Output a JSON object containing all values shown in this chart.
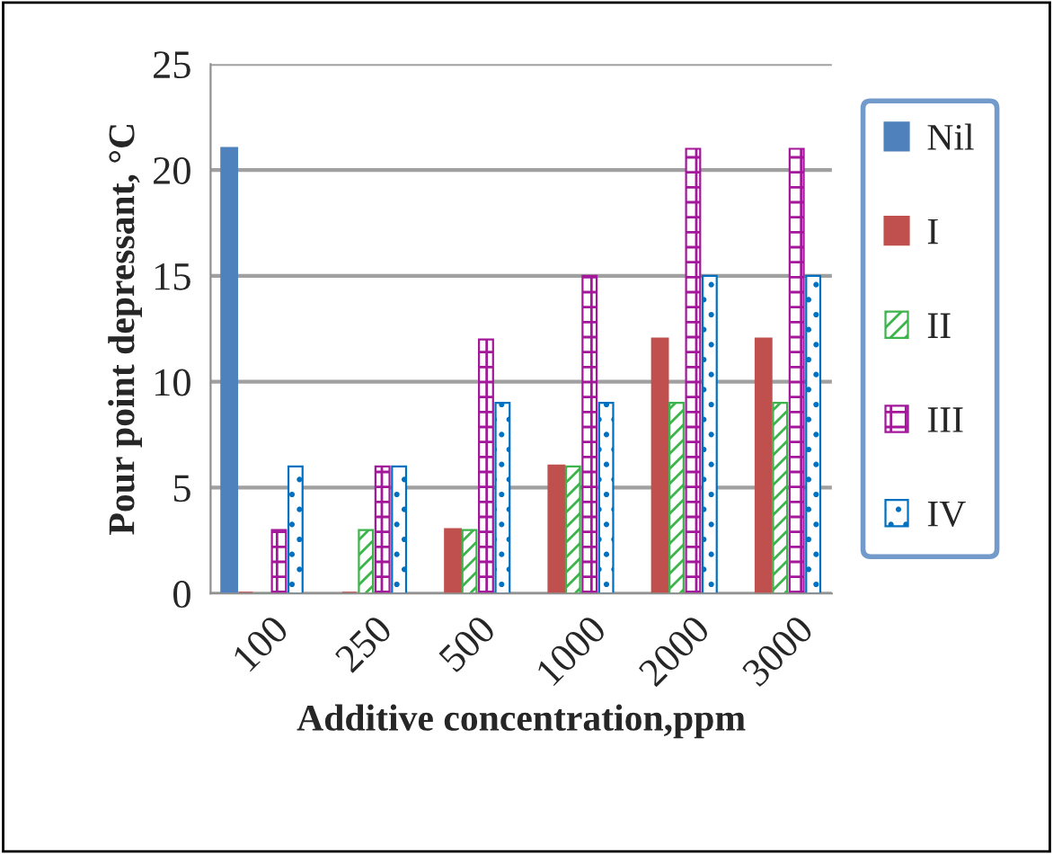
{
  "chart_data": {
    "type": "bar",
    "xlabel": "Additive concentration,ppm",
    "ylabel": "Pour point depressant, °C",
    "categories": [
      "100",
      "250",
      "500",
      "1000",
      "2000",
      "3000"
    ],
    "series": [
      {
        "name": "Nil",
        "color": "#4f81bd",
        "values": [
          21,
          null,
          null,
          null,
          null,
          null
        ]
      },
      {
        "name": "I",
        "color": "#c0504d",
        "values": [
          0,
          0,
          3,
          6,
          12,
          12
        ]
      },
      {
        "name": "II",
        "color": "#3cb44b",
        "values": [
          0,
          3,
          3,
          6,
          9,
          9
        ]
      },
      {
        "name": "III",
        "color": "#a3189b",
        "values": [
          3,
          6,
          12,
          15,
          21,
          21
        ]
      },
      {
        "name": "IV",
        "color": "#0070c0",
        "values": [
          6,
          6,
          9,
          9,
          15,
          15
        ]
      }
    ],
    "ylim": [
      0,
      25
    ],
    "yticks": [
      0,
      5,
      10,
      15,
      20,
      25
    ],
    "grid": "y",
    "legend": "right"
  }
}
